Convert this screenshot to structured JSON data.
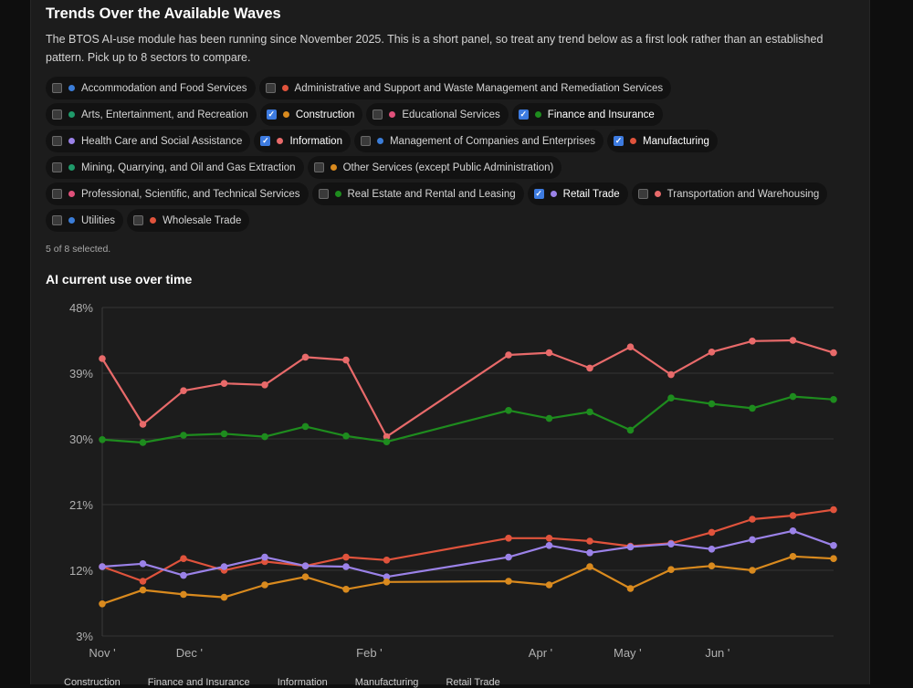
{
  "page": {
    "title": "Trends Over the Available Waves",
    "description": "The BTOS AI-use module has been running since November 2025. This is a short panel, so treat any trend below as a first look rather than an established pattern. Pick up to 8 sectors to compare.",
    "selection_count": "5 of 8 selected.",
    "chart_title": "AI current use over time"
  },
  "sectors": [
    {
      "label": "Accommodation and Food Services",
      "color": "#3b7dd8",
      "selected": false
    },
    {
      "label": "Administrative and Support and Waste Management and Remediation Services",
      "color": "#e0533c",
      "selected": false
    },
    {
      "label": "Arts, Entertainment, and Recreation",
      "color": "#1f9a6a",
      "selected": false
    },
    {
      "label": "Construction",
      "color": "#d98a1e",
      "selected": true
    },
    {
      "label": "Educational Services",
      "color": "#e0507a",
      "selected": false
    },
    {
      "label": "Finance and Insurance",
      "color": "#1e8c1e",
      "selected": true
    },
    {
      "label": "Health Care and Social Assistance",
      "color": "#9b82e8",
      "selected": false
    },
    {
      "label": "Information",
      "color": "#e86a6a",
      "selected": true
    },
    {
      "label": "Management of Companies and Enterprises",
      "color": "#3b7dd8",
      "selected": false
    },
    {
      "label": "Manufacturing",
      "color": "#e0533c",
      "selected": true
    },
    {
      "label": "Mining, Quarrying, and Oil and Gas Extraction",
      "color": "#1f9a6a",
      "selected": false
    },
    {
      "label": "Other Services (except Public Administration)",
      "color": "#d98a1e",
      "selected": false
    },
    {
      "label": "Professional, Scientific, and Technical Services",
      "color": "#e0507a",
      "selected": false
    },
    {
      "label": "Real Estate and Rental and Leasing",
      "color": "#1e8c1e",
      "selected": false
    },
    {
      "label": "Retail Trade",
      "color": "#9b82e8",
      "selected": true
    },
    {
      "label": "Transportation and Warehousing",
      "color": "#e86a6a",
      "selected": false
    },
    {
      "label": "Utilities",
      "color": "#3b7dd8",
      "selected": false
    },
    {
      "label": "Wholesale Trade",
      "color": "#e0533c",
      "selected": false
    }
  ],
  "chart_data": {
    "type": "line",
    "title": "AI current use over time",
    "xlabel": "",
    "ylabel": "",
    "x_ticks": [
      "Nov '",
      "Dec '",
      "Feb '",
      "Apr '",
      "May '",
      "Jun '"
    ],
    "y_ticks": [
      "48%",
      "39%",
      "30%",
      "21%",
      "12%",
      "3%"
    ],
    "ylim": [
      3,
      48
    ],
    "x": [
      "2025-11-01",
      "2025-11-15",
      "2025-11-29",
      "2025-12-13",
      "2025-12-27",
      "2026-01-10",
      "2026-01-24",
      "2026-02-07",
      "2026-03-21",
      "2026-04-04",
      "2026-04-18",
      "2026-05-02",
      "2026-05-16",
      "2026-05-30",
      "2026-06-13",
      "2026-06-27",
      "2026-07-11"
    ],
    "grid": true,
    "series": [
      {
        "name": "Information",
        "color": "#e86a6a",
        "values": [
          41.0,
          32.0,
          36.6,
          37.6,
          37.4,
          41.2,
          40.8,
          30.3,
          41.5,
          41.8,
          39.7,
          42.6,
          38.8,
          41.9,
          43.4,
          43.5,
          41.8
        ]
      },
      {
        "name": "Finance and Insurance",
        "color": "#1e8c1e",
        "values": [
          29.9,
          29.5,
          30.5,
          30.7,
          30.3,
          31.7,
          30.4,
          29.6,
          33.9,
          32.8,
          33.7,
          31.2,
          35.6,
          34.8,
          34.2,
          35.8,
          35.4
        ]
      },
      {
        "name": "Manufacturing",
        "color": "#e0533c",
        "values": [
          12.5,
          10.5,
          13.6,
          12.0,
          13.2,
          12.6,
          13.8,
          13.4,
          16.4,
          16.4,
          16.0,
          15.3,
          15.7,
          17.2,
          19.0,
          19.5,
          20.3
        ]
      },
      {
        "name": "Retail Trade",
        "color": "#9b82e8",
        "values": [
          12.5,
          12.9,
          11.3,
          12.5,
          13.8,
          12.6,
          12.5,
          11.1,
          13.8,
          15.4,
          14.4,
          15.2,
          15.6,
          14.9,
          16.2,
          17.4,
          15.4
        ]
      },
      {
        "name": "Construction",
        "color": "#d98a1e",
        "values": [
          7.4,
          9.3,
          8.7,
          8.3,
          10.0,
          11.1,
          9.4,
          10.4,
          10.5,
          10.0,
          12.5,
          9.5,
          12.1,
          12.6,
          12.0,
          13.9,
          13.6
        ]
      }
    ]
  },
  "legend": [
    "Construction",
    "Finance and Insurance",
    "Information",
    "Manufacturing",
    "Retail Trade"
  ]
}
